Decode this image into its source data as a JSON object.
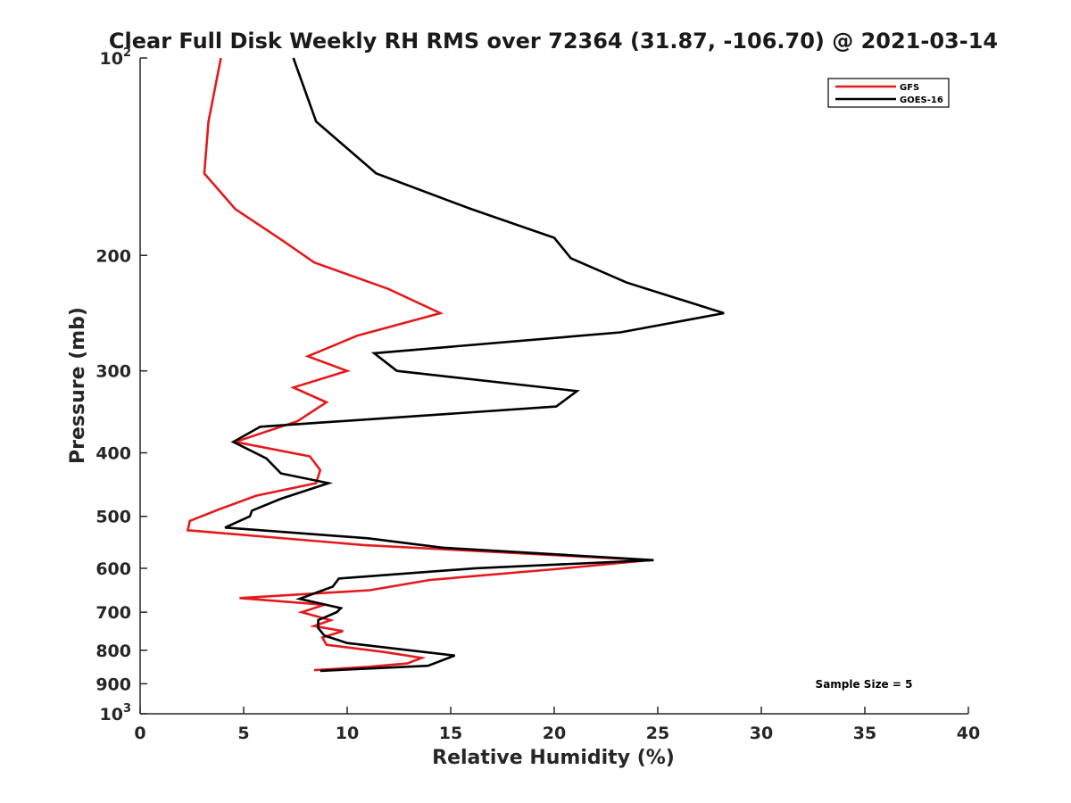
{
  "chart_data": {
    "type": "line",
    "title": "Clear Full Disk Weekly RH RMS over 72364 (31.87, -106.70) @ 2021-03-14",
    "xlabel": "Relative Humidity (%)",
    "ylabel": "Pressure (mb)",
    "xlim": [
      0,
      40
    ],
    "ylim": [
      100,
      1000
    ],
    "yscale": "log",
    "y_reversed": true,
    "x_ticks": [
      "0",
      "5",
      "10",
      "15",
      "20",
      "25",
      "30",
      "35",
      "40"
    ],
    "y_ticks": [
      {
        "value": 100,
        "base": "10",
        "exp": "2"
      },
      {
        "value": 200,
        "base": "200",
        "exp": ""
      },
      {
        "value": 300,
        "base": "300",
        "exp": ""
      },
      {
        "value": 400,
        "base": "400",
        "exp": ""
      },
      {
        "value": 500,
        "base": "500",
        "exp": ""
      },
      {
        "value": 600,
        "base": "600",
        "exp": ""
      },
      {
        "value": 700,
        "base": "700",
        "exp": ""
      },
      {
        "value": 800,
        "base": "800",
        "exp": ""
      },
      {
        "value": 900,
        "base": "900",
        "exp": ""
      },
      {
        "value": 1000,
        "base": "10",
        "exp": "3"
      }
    ],
    "grid": false,
    "legend_position": "top-right",
    "series": [
      {
        "name": "GFS",
        "color": "#e41a1c",
        "points": [
          [
            3.9,
            100
          ],
          [
            3.3,
            125
          ],
          [
            3.1,
            150
          ],
          [
            4.6,
            170
          ],
          [
            6.9,
            190
          ],
          [
            8.4,
            205
          ],
          [
            12.0,
            225
          ],
          [
            14.5,
            245
          ],
          [
            10.5,
            265
          ],
          [
            8.1,
            285
          ],
          [
            10.0,
            300
          ],
          [
            7.4,
            318
          ],
          [
            9.0,
            335
          ],
          [
            7.6,
            358
          ],
          [
            4.6,
            385
          ],
          [
            8.2,
            405
          ],
          [
            8.7,
            425
          ],
          [
            8.5,
            445
          ],
          [
            5.6,
            465
          ],
          [
            3.8,
            488
          ],
          [
            2.4,
            508
          ],
          [
            2.3,
            525
          ],
          [
            10.8,
            553
          ],
          [
            24.6,
            583
          ],
          [
            20.0,
            602
          ],
          [
            14.0,
            625
          ],
          [
            11.1,
            648
          ],
          [
            4.8,
            666
          ],
          [
            8.9,
            682
          ],
          [
            7.8,
            700
          ],
          [
            9.2,
            720
          ],
          [
            8.4,
            735
          ],
          [
            9.8,
            748
          ],
          [
            8.8,
            765
          ],
          [
            9.0,
            785
          ],
          [
            11.8,
            805
          ],
          [
            13.6,
            822
          ],
          [
            12.9,
            838
          ],
          [
            11.0,
            848
          ],
          [
            8.4,
            858
          ]
        ]
      },
      {
        "name": "GOES-16",
        "color": "#000000",
        "points": [
          [
            7.4,
            100
          ],
          [
            8.5,
            125
          ],
          [
            11.4,
            150
          ],
          [
            16.0,
            170
          ],
          [
            20.0,
            188
          ],
          [
            20.8,
            202
          ],
          [
            23.5,
            220
          ],
          [
            28.2,
            245
          ],
          [
            23.2,
            262
          ],
          [
            11.3,
            282
          ],
          [
            12.4,
            300
          ],
          [
            21.1,
            322
          ],
          [
            20.1,
            340
          ],
          [
            5.8,
            365
          ],
          [
            4.5,
            385
          ],
          [
            6.1,
            408
          ],
          [
            6.8,
            430
          ],
          [
            9.1,
            445
          ],
          [
            6.8,
            470
          ],
          [
            5.4,
            490
          ],
          [
            5.3,
            500
          ],
          [
            4.1,
            520
          ],
          [
            11.0,
            540
          ],
          [
            14.6,
            558
          ],
          [
            24.8,
            583
          ],
          [
            16.2,
            600
          ],
          [
            9.6,
            622
          ],
          [
            9.3,
            640
          ],
          [
            7.7,
            668
          ],
          [
            9.7,
            690
          ],
          [
            9.5,
            700
          ],
          [
            8.6,
            720
          ],
          [
            8.6,
            740
          ],
          [
            8.9,
            760
          ],
          [
            10.0,
            780
          ],
          [
            15.2,
            815
          ],
          [
            13.9,
            845
          ],
          [
            8.7,
            860
          ]
        ]
      }
    ],
    "annotations": [
      "Sample Size = 5"
    ]
  }
}
